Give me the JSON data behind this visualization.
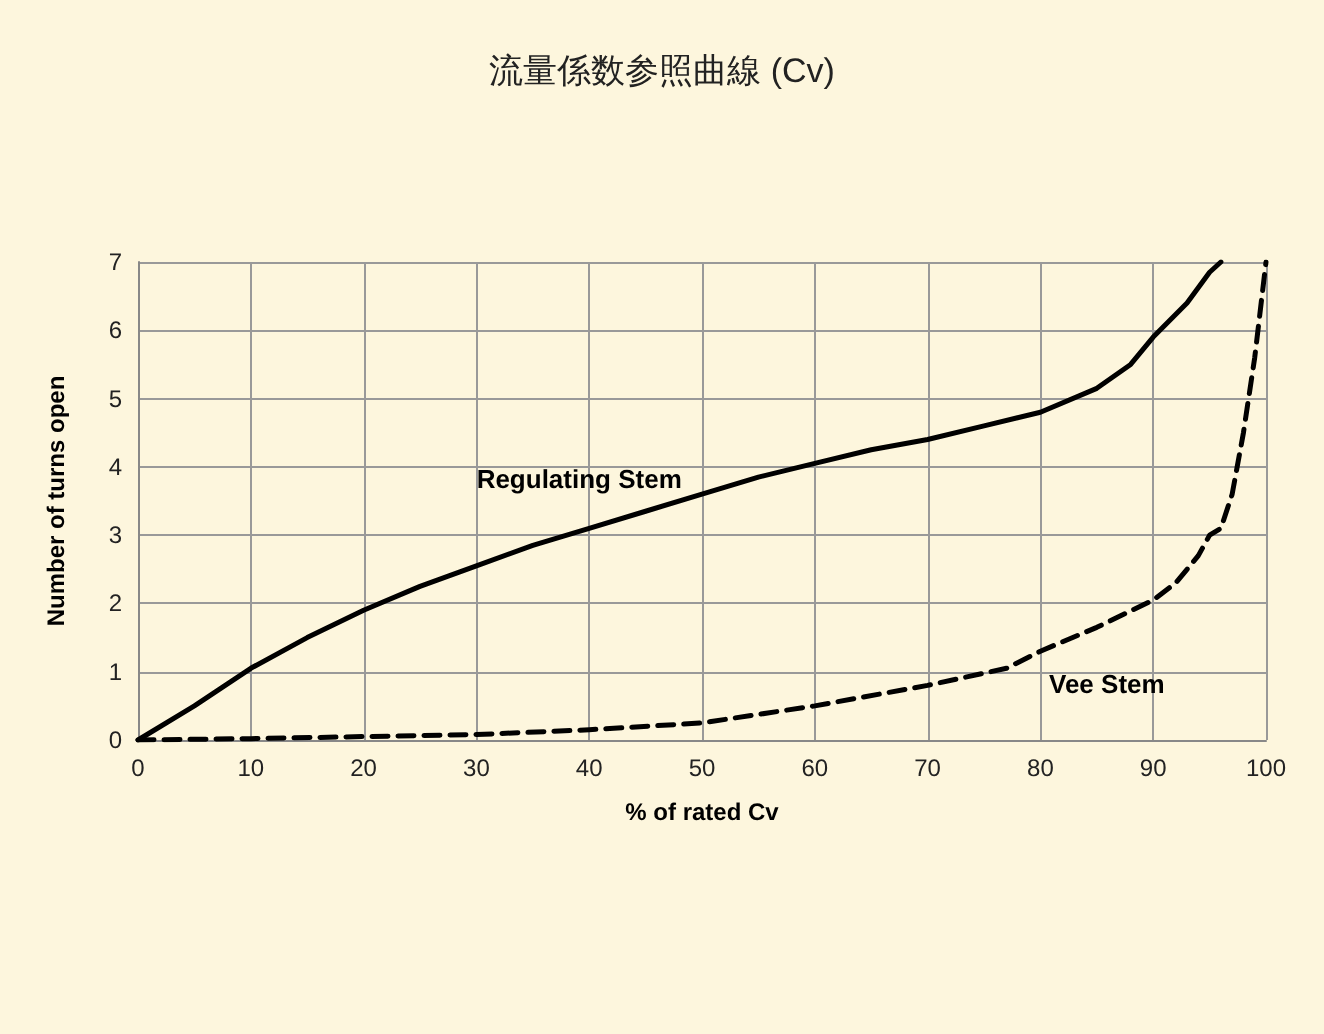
{
  "chart_data": {
    "type": "line",
    "title": "流量係数参照曲線 (Cv)",
    "xlabel": "% of rated Cv",
    "ylabel": "Number of turns open",
    "xlim": [
      0,
      100
    ],
    "xticks": [
      0,
      10,
      20,
      30,
      40,
      50,
      60,
      70,
      80,
      90,
      100
    ],
    "ylim": [
      0,
      7
    ],
    "yticks": [
      0,
      1,
      2,
      3,
      4,
      5,
      6,
      7
    ],
    "grid": true,
    "legend": false,
    "marker": "none",
    "series": [
      {
        "name": "Regulating Stem",
        "color": "#000000",
        "line_style": "solid",
        "x": [
          0,
          5,
          10,
          15,
          20,
          25,
          30,
          35,
          40,
          45,
          50,
          55,
          60,
          65,
          70,
          75,
          80,
          85,
          88,
          90,
          93,
          95,
          96
        ],
        "values": [
          0,
          0.5,
          1.05,
          1.5,
          1.9,
          2.25,
          2.55,
          2.85,
          3.1,
          3.35,
          3.6,
          3.85,
          4.05,
          4.25,
          4.4,
          4.6,
          4.8,
          5.15,
          5.5,
          5.9,
          6.4,
          6.85,
          7
        ]
      },
      {
        "name": "Vee Stem",
        "color": "#000000",
        "line_style": "dashed",
        "x": [
          0,
          10,
          20,
          30,
          40,
          50,
          60,
          70,
          77,
          80,
          85,
          90,
          92,
          94,
          95,
          96,
          97,
          98,
          99,
          100
        ],
        "values": [
          0,
          0.02,
          0.05,
          0.08,
          0.15,
          0.25,
          0.5,
          0.8,
          1.05,
          1.3,
          1.65,
          2.05,
          2.3,
          2.7,
          3,
          3.1,
          3.6,
          4.5,
          5.6,
          7
        ]
      }
    ]
  }
}
